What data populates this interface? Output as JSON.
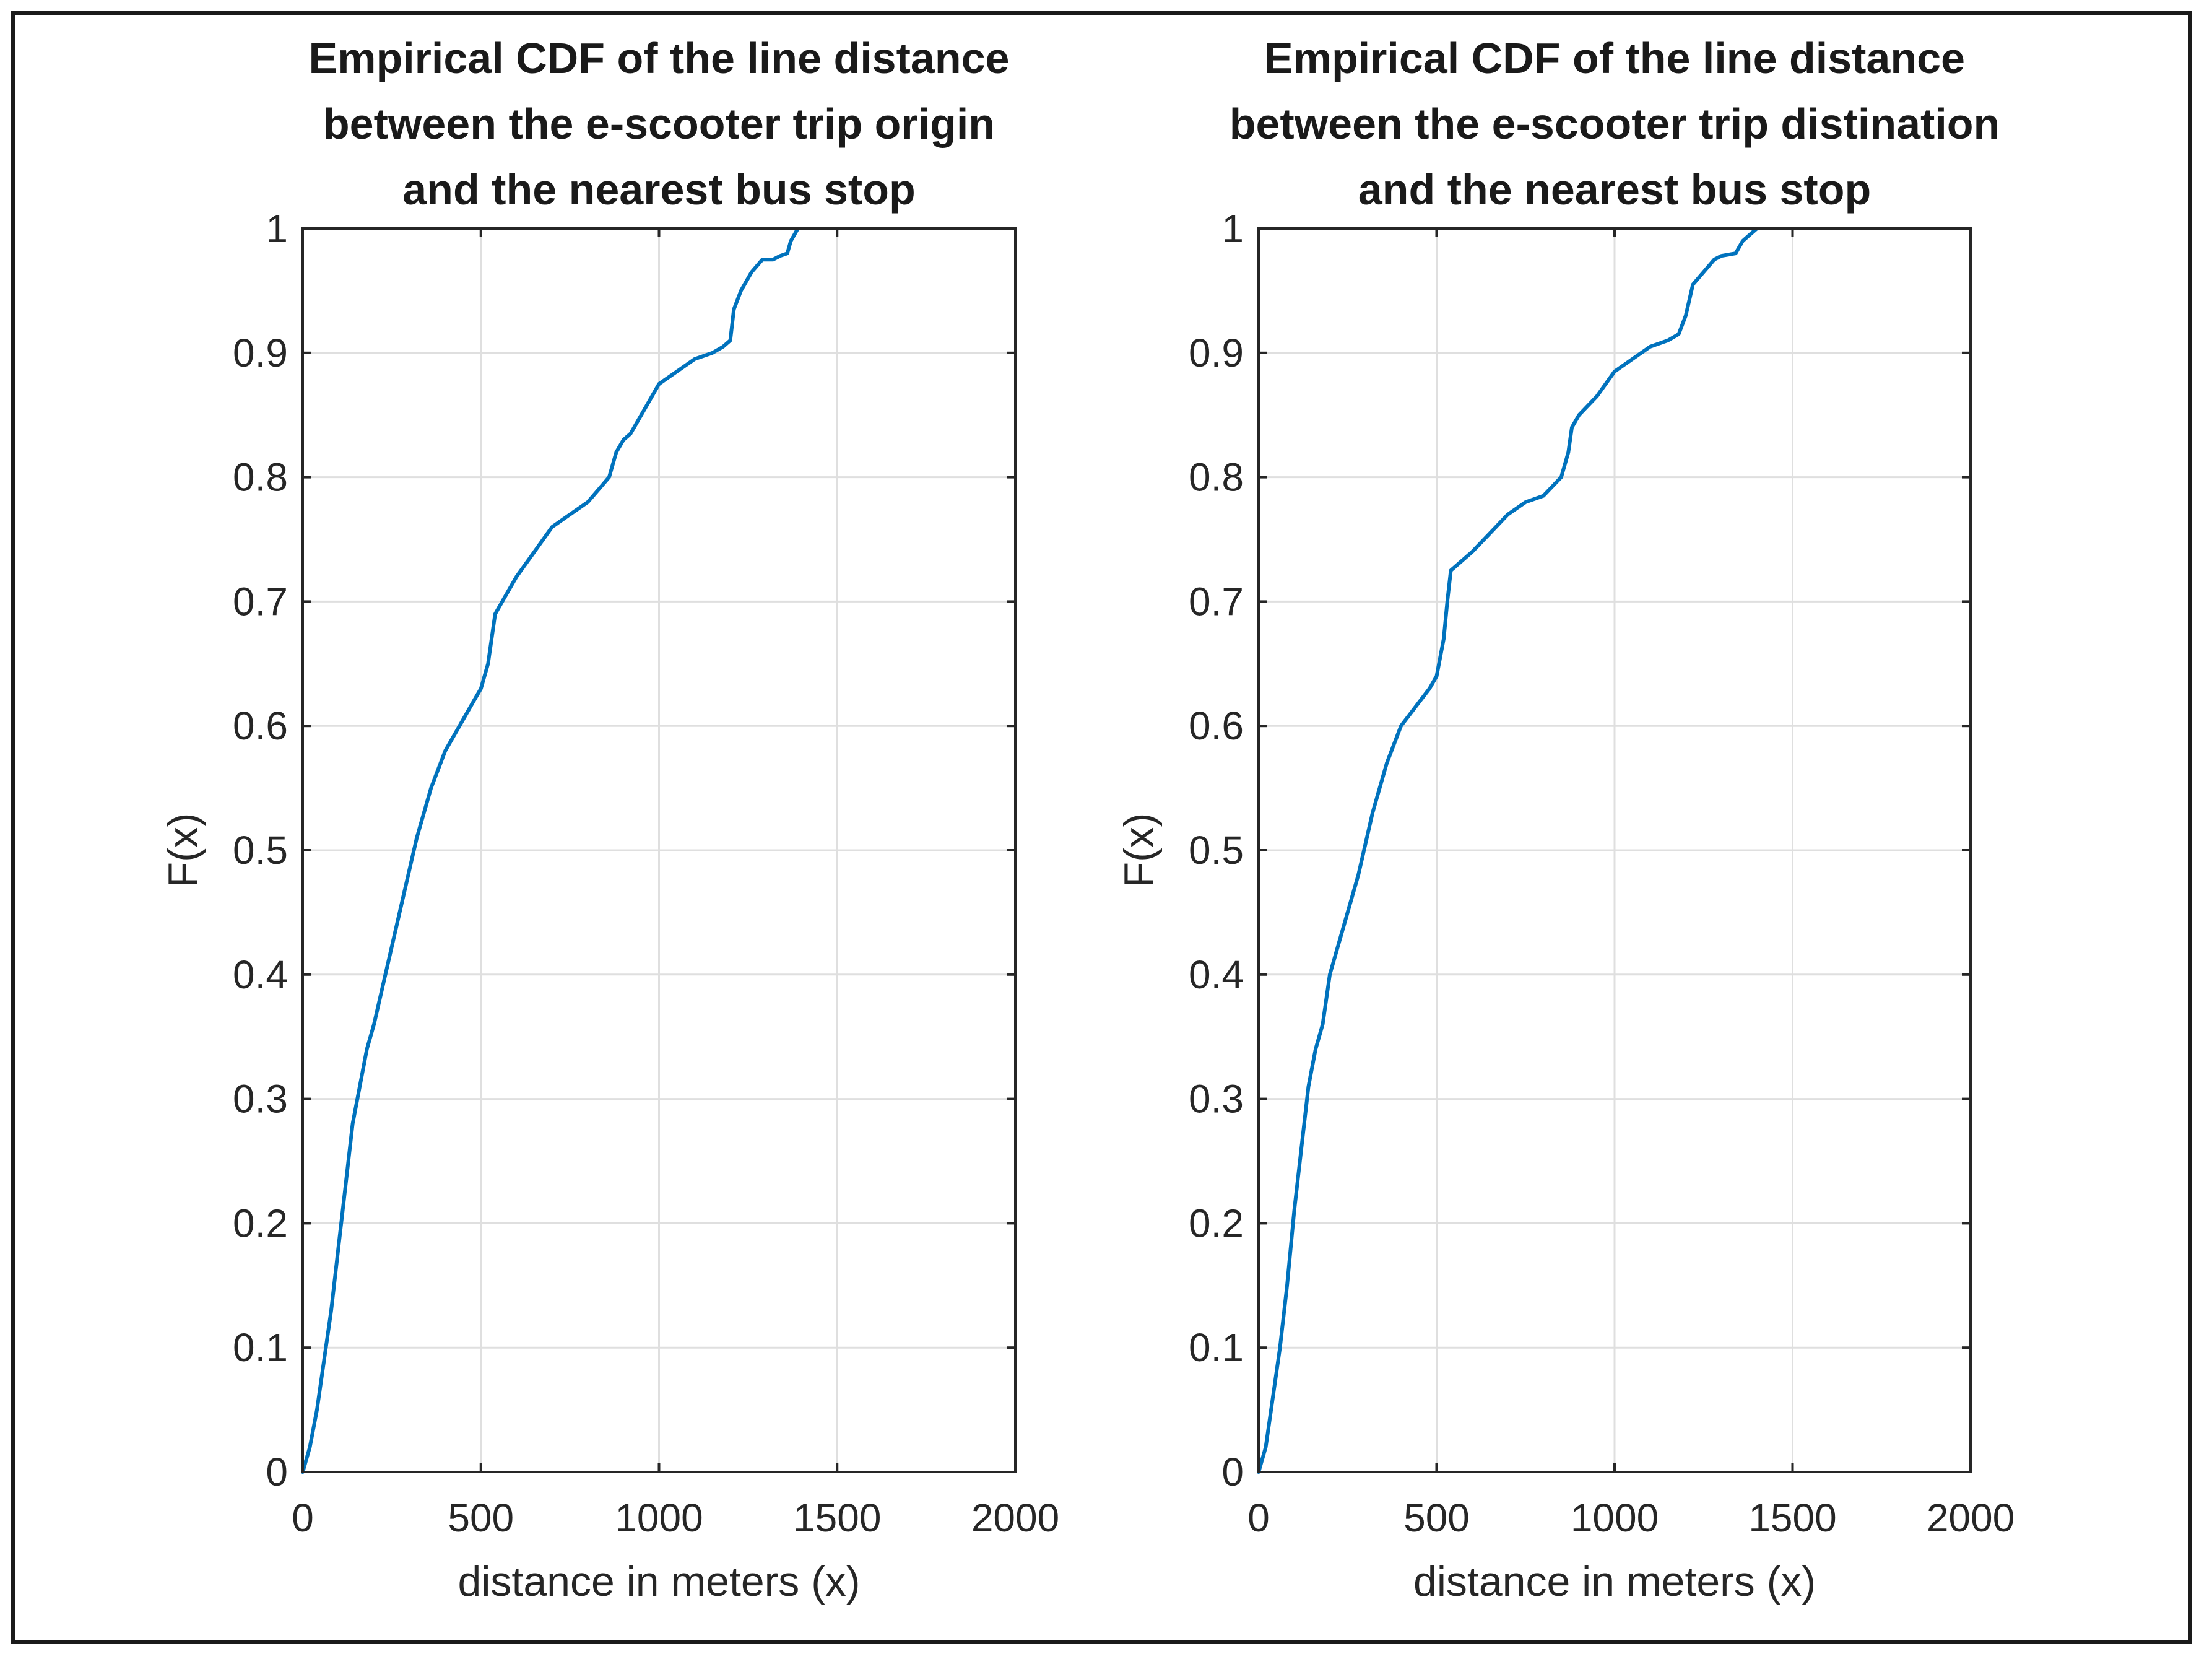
{
  "chart_data": [
    {
      "type": "line",
      "title": [
        "Empirical CDF of the line distance",
        "between the e-scooter trip origin",
        "and the nearest bus stop"
      ],
      "xlabel": "distance in meters (x)",
      "ylabel": "F(x)",
      "xlim": [
        0,
        2000
      ],
      "ylim": [
        0,
        1
      ],
      "xticks": [
        "0",
        "500",
        "1000",
        "1500",
        "2000"
      ],
      "yticks": [
        "0",
        "0.1",
        "0.2",
        "0.3",
        "0.4",
        "0.5",
        "0.6",
        "0.7",
        "0.8",
        "0.9",
        "1"
      ],
      "grid": true,
      "line_color": "#0072BD",
      "x": [
        0,
        20,
        40,
        60,
        80,
        100,
        120,
        140,
        160,
        180,
        200,
        240,
        280,
        320,
        360,
        400,
        440,
        480,
        500,
        520,
        540,
        560,
        600,
        650,
        700,
        750,
        800,
        830,
        860,
        880,
        900,
        920,
        940,
        960,
        980,
        1000,
        1050,
        1100,
        1150,
        1180,
        1200,
        1210,
        1230,
        1260,
        1290,
        1320,
        1340,
        1360,
        1370,
        1390,
        1420,
        1500,
        1600,
        1800,
        2000
      ],
      "y": [
        0,
        0.02,
        0.05,
        0.09,
        0.13,
        0.18,
        0.23,
        0.28,
        0.31,
        0.34,
        0.36,
        0.41,
        0.46,
        0.51,
        0.55,
        0.58,
        0.6,
        0.62,
        0.63,
        0.65,
        0.69,
        0.7,
        0.72,
        0.74,
        0.76,
        0.77,
        0.78,
        0.79,
        0.8,
        0.82,
        0.83,
        0.835,
        0.845,
        0.855,
        0.865,
        0.875,
        0.885,
        0.895,
        0.9,
        0.905,
        0.91,
        0.935,
        0.95,
        0.965,
        0.975,
        0.975,
        0.978,
        0.98,
        0.99,
        1.0,
        1.0,
        1.0,
        1.0,
        1.0,
        1.0
      ]
    },
    {
      "type": "line",
      "title": [
        "Empirical CDF of the line distance",
        "between the e-scooter trip distination",
        "and the nearest bus stop"
      ],
      "xlabel": "distance in meters (x)",
      "ylabel": "F(x)",
      "xlim": [
        0,
        2000
      ],
      "ylim": [
        0,
        1
      ],
      "xticks": [
        "0",
        "500",
        "1000",
        "1500",
        "2000"
      ],
      "yticks": [
        "0",
        "0.1",
        "0.2",
        "0.3",
        "0.4",
        "0.5",
        "0.6",
        "0.7",
        "0.8",
        "0.9",
        "1"
      ],
      "grid": true,
      "line_color": "#0072BD",
      "x": [
        0,
        20,
        40,
        60,
        80,
        100,
        120,
        140,
        160,
        180,
        200,
        240,
        280,
        320,
        360,
        400,
        440,
        480,
        500,
        520,
        530,
        540,
        560,
        600,
        650,
        700,
        750,
        800,
        850,
        870,
        880,
        900,
        950,
        1000,
        1050,
        1100,
        1150,
        1180,
        1200,
        1220,
        1250,
        1280,
        1300,
        1340,
        1360,
        1380,
        1400,
        1450,
        1500,
        1600,
        1800,
        2000
      ],
      "y": [
        0,
        0.02,
        0.06,
        0.1,
        0.15,
        0.21,
        0.26,
        0.31,
        0.34,
        0.36,
        0.4,
        0.44,
        0.48,
        0.53,
        0.57,
        0.6,
        0.615,
        0.63,
        0.64,
        0.67,
        0.7,
        0.725,
        0.73,
        0.74,
        0.755,
        0.77,
        0.78,
        0.785,
        0.8,
        0.82,
        0.84,
        0.85,
        0.865,
        0.885,
        0.895,
        0.905,
        0.91,
        0.915,
        0.93,
        0.955,
        0.965,
        0.975,
        0.978,
        0.98,
        0.99,
        0.995,
        1.0,
        1.0,
        1.0,
        1.0,
        1.0,
        1.0
      ]
    }
  ]
}
